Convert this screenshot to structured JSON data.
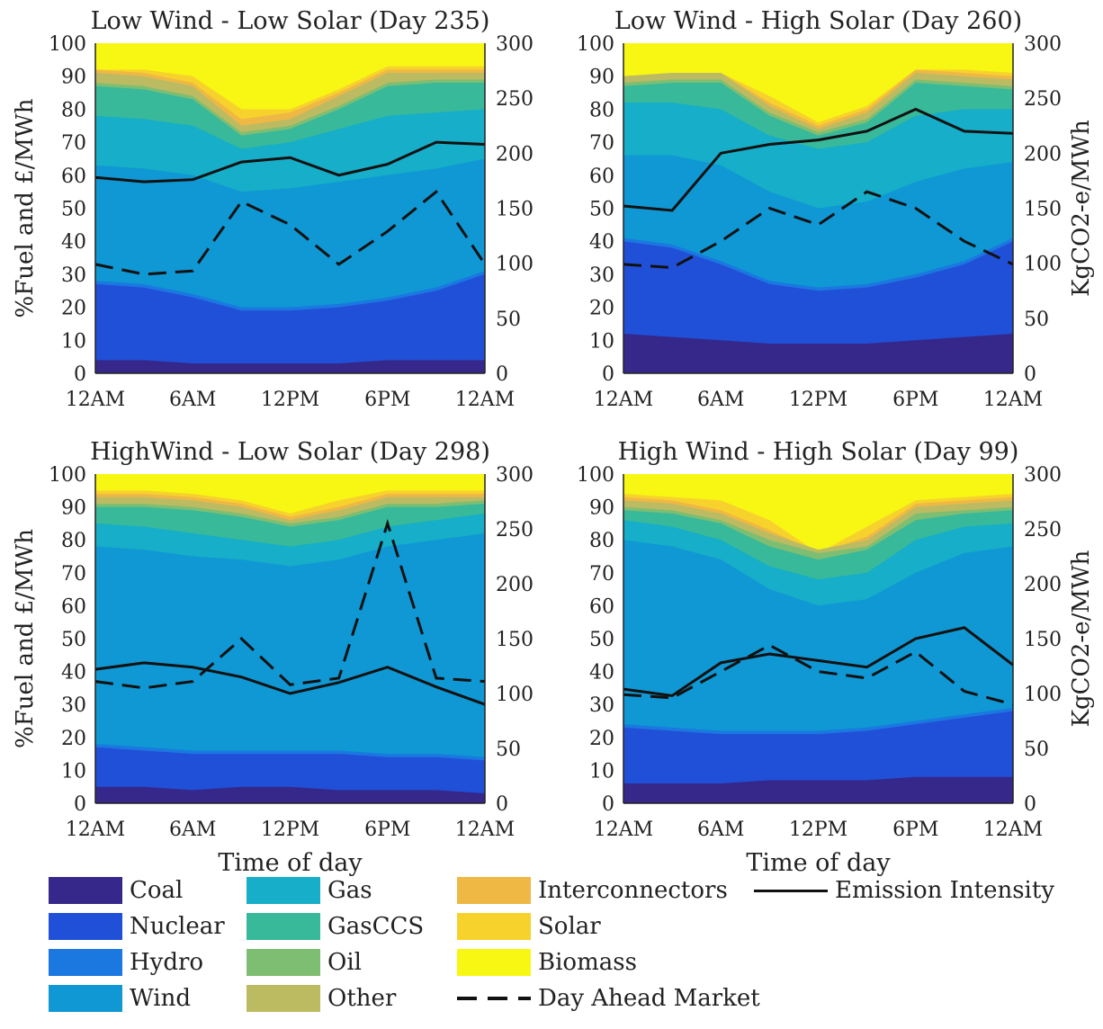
{
  "x_tick_labels": [
    "12AM",
    "6AM",
    "12PM",
    "6PM",
    "12AM"
  ],
  "left_axis_label": "%Fuel and £/MWh",
  "right_axis_label": "KgCO2-e/MWh",
  "x_axis_label": "Time of day",
  "legend": {
    "items": [
      {
        "label": "Coal",
        "color": "#35288a"
      },
      {
        "label": "Nuclear",
        "color": "#2150d8"
      },
      {
        "label": "Hydro",
        "color": "#1a78e0"
      },
      {
        "label": "Wind",
        "color": "#0f98d4"
      },
      {
        "label": "Gas",
        "color": "#16aec8"
      },
      {
        "label": "GasCCS",
        "color": "#38b99a"
      },
      {
        "label": "Oil",
        "color": "#7ebe72"
      },
      {
        "label": "Other",
        "color": "#bcbb62"
      },
      {
        "label": "Interconnectors",
        "color": "#efb845"
      },
      {
        "label": "Solar",
        "color": "#f8d22c"
      },
      {
        "label": "Biomass",
        "color": "#f7f713"
      }
    ],
    "emission_label": "Emission Intensity",
    "dam_label": "Day Ahead Market"
  },
  "chart_data": [
    {
      "type": "area",
      "title": "Low Wind - Low Solar (Day 235)",
      "x_hours": [
        0,
        3,
        6,
        9,
        12,
        15,
        18,
        21,
        24
      ],
      "ylim": [
        0,
        100
      ],
      "y2lim": [
        0,
        300
      ],
      "stacked_cumulative_percent": {
        "Coal": [
          4,
          4,
          3,
          3,
          3,
          3,
          4,
          4,
          4
        ],
        "Nuclear": [
          27,
          26,
          23,
          19,
          19,
          20,
          22,
          25,
          30
        ],
        "Hydro": [
          28,
          27,
          24,
          20,
          20,
          21,
          23,
          26,
          31
        ],
        "Wind": [
          63,
          62,
          60,
          55,
          56,
          58,
          60,
          62,
          65
        ],
        "Gas": [
          78,
          77,
          75,
          68,
          70,
          74,
          78,
          79,
          80
        ],
        "GasCCS": [
          87,
          86,
          83,
          72,
          74,
          80,
          87,
          88,
          88
        ],
        "Oil": [
          88,
          87,
          84,
          73,
          75,
          81,
          88,
          89,
          89
        ],
        "Other": [
          91,
          90,
          87,
          75,
          77,
          84,
          91,
          91,
          91
        ],
        "Interconnectors": [
          92,
          91,
          88,
          77,
          79,
          85,
          92,
          92,
          92
        ],
        "Solar": [
          92,
          92,
          90,
          80,
          80,
          86,
          93,
          93,
          93
        ],
        "Biomass": [
          100,
          100,
          100,
          100,
          100,
          100,
          100,
          100,
          100
        ]
      },
      "day_ahead_market_gbp_per_mwh": [
        33,
        30,
        31,
        52,
        45,
        33,
        43,
        55,
        33
      ],
      "emission_intensity_kgco2_per_mwh": [
        178,
        174,
        176,
        192,
        196,
        180,
        190,
        210,
        208
      ]
    },
    {
      "type": "area",
      "title": "Low Wind - High Solar (Day 260)",
      "x_hours": [
        0,
        3,
        6,
        9,
        12,
        15,
        18,
        21,
        24
      ],
      "ylim": [
        0,
        100
      ],
      "y2lim": [
        0,
        300
      ],
      "stacked_cumulative_percent": {
        "Coal": [
          12,
          11,
          10,
          9,
          9,
          9,
          10,
          11,
          12
        ],
        "Nuclear": [
          40,
          38,
          33,
          27,
          25,
          26,
          29,
          33,
          40
        ],
        "Hydro": [
          41,
          39,
          34,
          28,
          26,
          27,
          30,
          34,
          41
        ],
        "Wind": [
          66,
          66,
          63,
          55,
          50,
          52,
          58,
          62,
          64
        ],
        "Gas": [
          82,
          82,
          80,
          72,
          68,
          70,
          78,
          80,
          80
        ],
        "GasCCS": [
          87,
          88,
          88,
          78,
          72,
          76,
          88,
          87,
          86
        ],
        "Oil": [
          88,
          89,
          89,
          79,
          73,
          77,
          89,
          88,
          87
        ],
        "Other": [
          90,
          91,
          91,
          81,
          74,
          79,
          91,
          90,
          89
        ],
        "Interconnectors": [
          90,
          91,
          91,
          82,
          75,
          80,
          92,
          91,
          90
        ],
        "Solar": [
          90,
          91,
          91,
          84,
          76,
          81,
          92,
          92,
          91
        ],
        "Biomass": [
          100,
          100,
          100,
          100,
          100,
          100,
          100,
          100,
          100
        ]
      },
      "day_ahead_market_gbp_per_mwh": [
        33,
        32,
        40,
        50,
        45,
        55,
        50,
        40,
        33
      ],
      "emission_intensity_kgco2_per_mwh": [
        152,
        148,
        200,
        208,
        212,
        220,
        240,
        220,
        218
      ]
    },
    {
      "type": "area",
      "title": "HighWind - Low Solar (Day 298)",
      "x_hours": [
        0,
        3,
        6,
        9,
        12,
        15,
        18,
        21,
        24
      ],
      "ylim": [
        0,
        100
      ],
      "y2lim": [
        0,
        300
      ],
      "stacked_cumulative_percent": {
        "Coal": [
          5,
          5,
          4,
          5,
          5,
          4,
          4,
          4,
          3
        ],
        "Nuclear": [
          17,
          16,
          15,
          15,
          15,
          15,
          14,
          14,
          13
        ],
        "Hydro": [
          18,
          17,
          16,
          16,
          16,
          16,
          15,
          15,
          14
        ],
        "Wind": [
          78,
          77,
          75,
          74,
          72,
          74,
          78,
          80,
          82
        ],
        "Gas": [
          85,
          84,
          82,
          80,
          78,
          80,
          84,
          86,
          88
        ],
        "GasCCS": [
          90,
          90,
          89,
          87,
          84,
          86,
          90,
          90,
          91
        ],
        "Oil": [
          91,
          91,
          90,
          88,
          85,
          87,
          91,
          91,
          92
        ],
        "Other": [
          93,
          93,
          92,
          90,
          86,
          89,
          93,
          93,
          93
        ],
        "Interconnectors": [
          94,
          94,
          93,
          91,
          87,
          90,
          94,
          94,
          94
        ],
        "Solar": [
          95,
          95,
          94,
          92,
          88,
          92,
          95,
          95,
          95
        ],
        "Biomass": [
          100,
          100,
          100,
          100,
          100,
          100,
          100,
          100,
          100
        ]
      },
      "day_ahead_market_gbp_per_mwh": [
        37,
        35,
        37,
        50,
        36,
        38,
        85,
        38,
        37
      ],
      "emission_intensity_kgco2_per_mwh": [
        122,
        128,
        124,
        115,
        100,
        110,
        124,
        106,
        90
      ]
    },
    {
      "type": "area",
      "title": "High Wind - High Solar (Day 99)",
      "x_hours": [
        0,
        3,
        6,
        9,
        12,
        15,
        18,
        21,
        24
      ],
      "ylim": [
        0,
        100
      ],
      "y2lim": [
        0,
        300
      ],
      "stacked_cumulative_percent": {
        "Coal": [
          6,
          6,
          6,
          7,
          7,
          7,
          8,
          8,
          8
        ],
        "Nuclear": [
          23,
          22,
          21,
          21,
          21,
          22,
          24,
          26,
          28
        ],
        "Hydro": [
          24,
          23,
          22,
          22,
          22,
          23,
          25,
          27,
          29
        ],
        "Wind": [
          80,
          78,
          74,
          65,
          60,
          62,
          70,
          76,
          78
        ],
        "Gas": [
          86,
          84,
          80,
          72,
          68,
          70,
          80,
          84,
          85
        ],
        "GasCCS": [
          89,
          88,
          85,
          78,
          74,
          77,
          86,
          88,
          89
        ],
        "Oil": [
          90,
          89,
          86,
          80,
          76,
          78,
          88,
          89,
          90
        ],
        "Other": [
          92,
          91,
          88,
          82,
          77,
          80,
          90,
          91,
          92
        ],
        "Interconnectors": [
          93,
          92,
          89,
          83,
          76,
          81,
          91,
          92,
          93
        ],
        "Solar": [
          94,
          93,
          92,
          86,
          76,
          84,
          92,
          93,
          94
        ],
        "Biomass": [
          100,
          100,
          100,
          100,
          100,
          100,
          100,
          100,
          100
        ]
      },
      "day_ahead_market_gbp_per_mwh": [
        33,
        32,
        40,
        48,
        40,
        38,
        46,
        34,
        30
      ],
      "emission_intensity_kgco2_per_mwh": [
        104,
        98,
        128,
        136,
        130,
        124,
        150,
        160,
        126
      ]
    }
  ]
}
